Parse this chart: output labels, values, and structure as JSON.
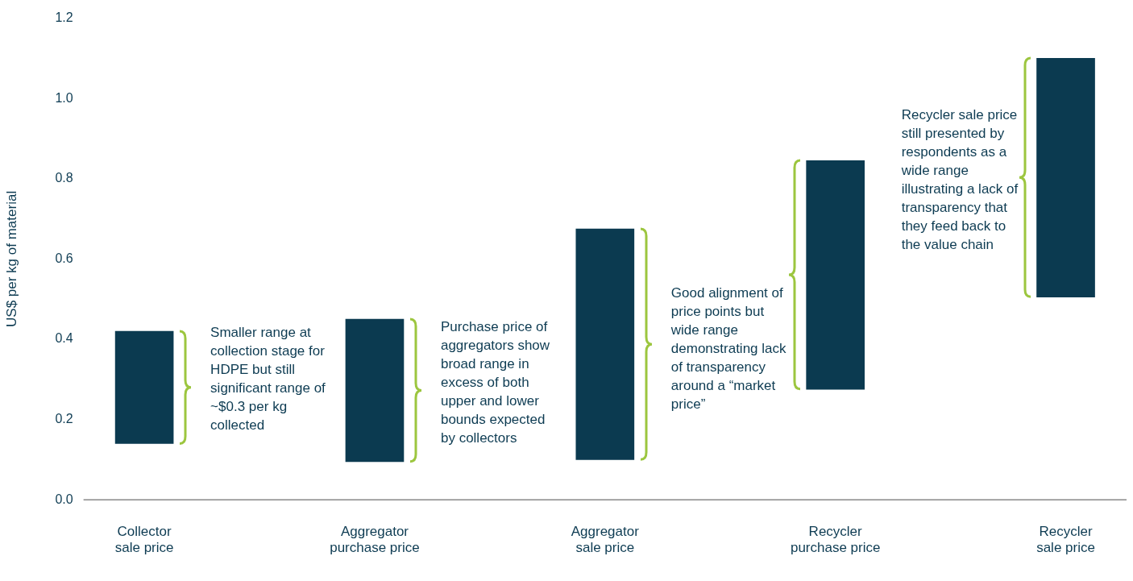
{
  "chart_data": {
    "type": "bar",
    "ylabel": "US$ per kg of material",
    "categories": [
      "Collector sale price",
      "Aggregator purchase price",
      "Aggregator sale price",
      "Recycler purchase price",
      "Recycler sale price"
    ],
    "base": [
      0.14,
      0.095,
      0.1,
      0.275,
      0.505
    ],
    "values": [
      0.28,
      0.355,
      0.575,
      0.57,
      0.595
    ],
    "color": "#0b3a50",
    "ylim": [
      0,
      1.2
    ],
    "yticks": [
      {
        "value": 0,
        "label": "0.0"
      },
      0.2,
      0.4,
      0.6,
      0.8,
      {
        "value": 1,
        "label": "1.0"
      },
      1.2
    ],
    "grid": false,
    "legend": false,
    "annotations": [
      "Smaller range at collection stage for HDPE but still significant range of ~$0.3 per kg collected",
      "Purchase price of aggregators show broad range in excess of both upper and lower bounds expected by collectors",
      "Good alignment of price points but wide range demonstrating lack of transparency around a “market price”",
      "Recycler sale price still presented by respondents as a wide range illustrating a lack of transparency that they feed back to the value chain"
    ]
  }
}
